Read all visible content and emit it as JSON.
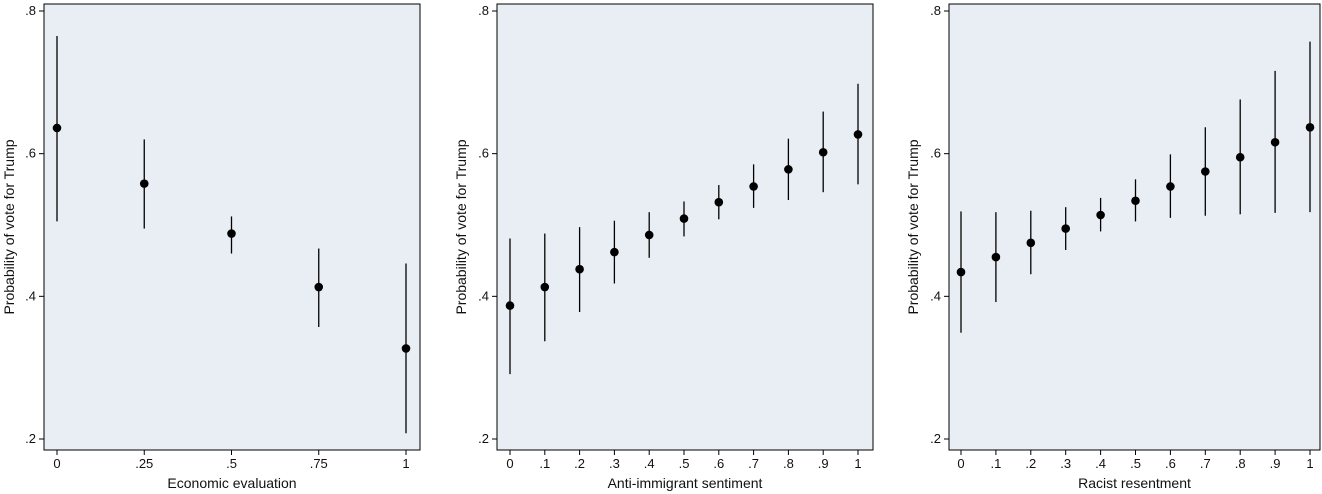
{
  "colors": {
    "plot_background": "#e9eef5",
    "plot_border": "#000000",
    "marker": "#000000",
    "ci_line": "#000000"
  },
  "chart_data": [
    {
      "type": "scatter",
      "title": "",
      "xlabel": "Economic evaluation",
      "ylabel": "Probability of vote for Trump",
      "xlim": [
        0,
        1
      ],
      "ylim": [
        0.2,
        0.8
      ],
      "yticks": [
        0.2,
        0.4,
        0.6,
        0.8
      ],
      "yticklabels": [
        ".2",
        ".4",
        ".6",
        ".8"
      ],
      "xticks": [
        0,
        0.25,
        0.5,
        0.75,
        1
      ],
      "xticklabels": [
        "0",
        ".25",
        ".5",
        ".75",
        "1"
      ],
      "grid": false,
      "legend": "none",
      "error_bars": "confidence interval",
      "points": [
        {
          "x": 0,
          "y": 0.636,
          "lo": 0.505,
          "hi": 0.765
        },
        {
          "x": 0.25,
          "y": 0.558,
          "lo": 0.495,
          "hi": 0.62
        },
        {
          "x": 0.5,
          "y": 0.488,
          "lo": 0.46,
          "hi": 0.512
        },
        {
          "x": 0.75,
          "y": 0.413,
          "lo": 0.357,
          "hi": 0.467
        },
        {
          "x": 1,
          "y": 0.327,
          "lo": 0.208,
          "hi": 0.446
        }
      ]
    },
    {
      "type": "scatter",
      "title": "",
      "xlabel": "Anti-immigrant sentiment",
      "ylabel": "Probability of vote for Trump",
      "xlim": [
        0,
        1
      ],
      "ylim": [
        0.2,
        0.8
      ],
      "yticks": [
        0.2,
        0.4,
        0.6,
        0.8
      ],
      "yticklabels": [
        ".2",
        ".4",
        ".6",
        ".8"
      ],
      "xticks": [
        0,
        0.1,
        0.2,
        0.3,
        0.4,
        0.5,
        0.6,
        0.7,
        0.8,
        0.9,
        1
      ],
      "xticklabels": [
        "0",
        ".1",
        ".2",
        ".3",
        ".4",
        ".5",
        ".6",
        ".7",
        ".8",
        ".9",
        "1"
      ],
      "grid": false,
      "legend": "none",
      "error_bars": "confidence interval",
      "points": [
        {
          "x": 0,
          "y": 0.387,
          "lo": 0.291,
          "hi": 0.481
        },
        {
          "x": 0.1,
          "y": 0.413,
          "lo": 0.337,
          "hi": 0.488
        },
        {
          "x": 0.2,
          "y": 0.438,
          "lo": 0.378,
          "hi": 0.497
        },
        {
          "x": 0.3,
          "y": 0.462,
          "lo": 0.418,
          "hi": 0.506
        },
        {
          "x": 0.4,
          "y": 0.486,
          "lo": 0.454,
          "hi": 0.518
        },
        {
          "x": 0.5,
          "y": 0.509,
          "lo": 0.484,
          "hi": 0.533
        },
        {
          "x": 0.6,
          "y": 0.532,
          "lo": 0.508,
          "hi": 0.556
        },
        {
          "x": 0.7,
          "y": 0.554,
          "lo": 0.524,
          "hi": 0.585
        },
        {
          "x": 0.8,
          "y": 0.578,
          "lo": 0.535,
          "hi": 0.621
        },
        {
          "x": 0.9,
          "y": 0.602,
          "lo": 0.546,
          "hi": 0.659
        },
        {
          "x": 1,
          "y": 0.627,
          "lo": 0.557,
          "hi": 0.698
        }
      ]
    },
    {
      "type": "scatter",
      "title": "",
      "xlabel": "Racist resentment",
      "ylabel": "Probability of vote for Trump",
      "xlim": [
        0,
        1
      ],
      "ylim": [
        0.2,
        0.8
      ],
      "yticks": [
        0.2,
        0.4,
        0.6,
        0.8
      ],
      "yticklabels": [
        ".2",
        ".4",
        ".6",
        ".8"
      ],
      "xticks": [
        0,
        0.1,
        0.2,
        0.3,
        0.4,
        0.5,
        0.6,
        0.7,
        0.8,
        0.9,
        1
      ],
      "xticklabels": [
        "0",
        ".1",
        ".2",
        ".3",
        ".4",
        ".5",
        ".6",
        ".7",
        ".8",
        ".9",
        "1"
      ],
      "grid": false,
      "legend": "none",
      "error_bars": "confidence interval",
      "points": [
        {
          "x": 0,
          "y": 0.434,
          "lo": 0.349,
          "hi": 0.519
        },
        {
          "x": 0.1,
          "y": 0.455,
          "lo": 0.392,
          "hi": 0.518
        },
        {
          "x": 0.2,
          "y": 0.475,
          "lo": 0.431,
          "hi": 0.52
        },
        {
          "x": 0.3,
          "y": 0.495,
          "lo": 0.465,
          "hi": 0.525
        },
        {
          "x": 0.4,
          "y": 0.514,
          "lo": 0.491,
          "hi": 0.538
        },
        {
          "x": 0.5,
          "y": 0.534,
          "lo": 0.505,
          "hi": 0.564
        },
        {
          "x": 0.6,
          "y": 0.554,
          "lo": 0.51,
          "hi": 0.599
        },
        {
          "x": 0.7,
          "y": 0.575,
          "lo": 0.513,
          "hi": 0.637
        },
        {
          "x": 0.8,
          "y": 0.595,
          "lo": 0.515,
          "hi": 0.676
        },
        {
          "x": 0.9,
          "y": 0.616,
          "lo": 0.517,
          "hi": 0.716
        },
        {
          "x": 1,
          "y": 0.637,
          "lo": 0.518,
          "hi": 0.757
        }
      ]
    }
  ]
}
